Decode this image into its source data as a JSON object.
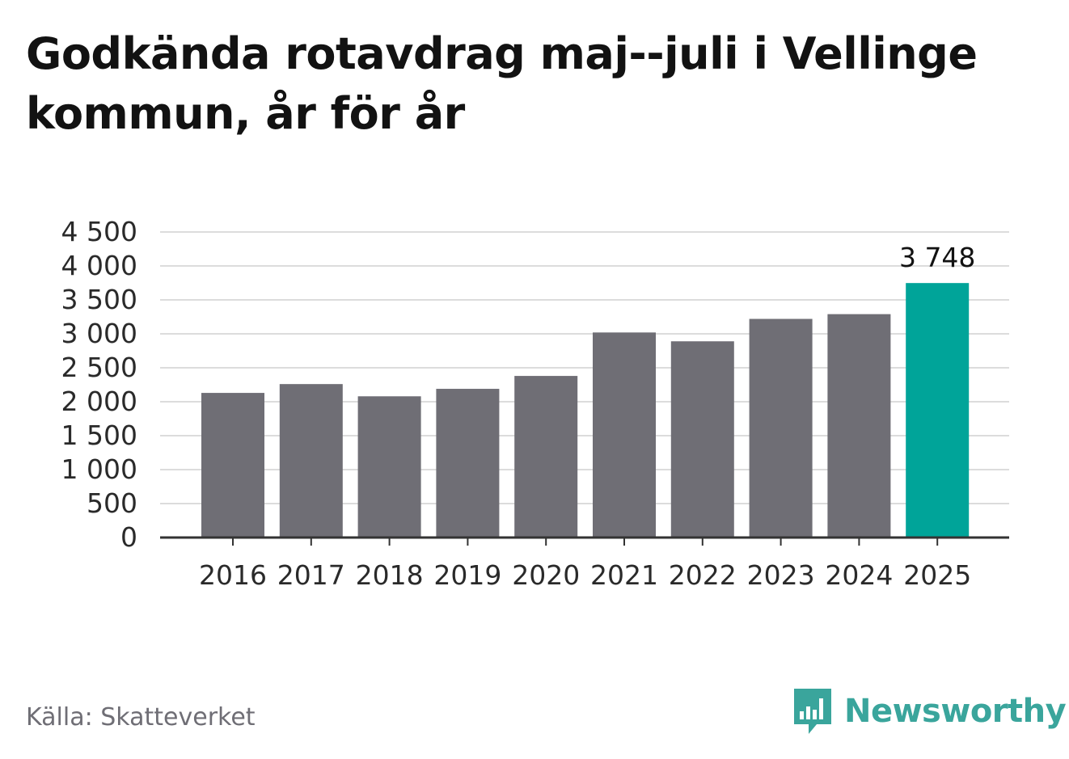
{
  "title": "Godkända rotavdrag maj--juli i Vellinge kommun, år för år",
  "source": "Källa: Skatteverket",
  "brand": {
    "name": "Newsworthy",
    "icon": "newsworthy-logo-icon",
    "color": "#3aa59c"
  },
  "colors": {
    "bar": "#6f6e75",
    "highlight": "#00a499",
    "grid": "#dcdcdc",
    "axis": "#333333"
  },
  "chart_data": {
    "type": "bar",
    "categories": [
      "2016",
      "2017",
      "2018",
      "2019",
      "2020",
      "2021",
      "2022",
      "2023",
      "2024",
      "2025"
    ],
    "values": [
      2130,
      2260,
      2080,
      2190,
      2380,
      3020,
      2890,
      3220,
      3290,
      3748
    ],
    "highlight_index": 9,
    "data_labels": {
      "9": "3 748"
    },
    "ylim": [
      0,
      4500
    ],
    "yticks": [
      0,
      500,
      1000,
      1500,
      2000,
      2500,
      3000,
      3500,
      4000,
      4500
    ],
    "ytick_labels": [
      "0",
      "500",
      "1 000",
      "1 500",
      "2 000",
      "2 500",
      "3 000",
      "3 500",
      "4 000",
      "4 500"
    ],
    "grid": true,
    "legend": false
  }
}
